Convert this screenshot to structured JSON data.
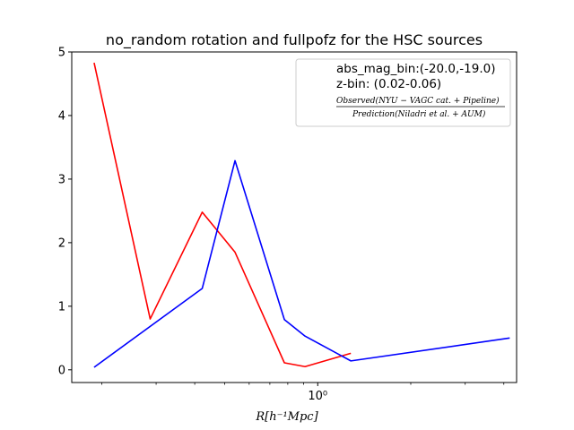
{
  "chart_data": {
    "type": "line",
    "title": "no_random rotation and fullpofz for the HSC sources",
    "xlabel": "R[h⁻¹Mpc]",
    "ylabel": "",
    "xscale": "log",
    "xlim": [
      0.16,
      4.4
    ],
    "ylim": [
      -0.2,
      5.0
    ],
    "x_ticks": [
      {
        "value": 1,
        "label": "10⁰"
      }
    ],
    "y_ticks": [
      {
        "value": 0,
        "label": "0"
      },
      {
        "value": 1,
        "label": "1"
      },
      {
        "value": 2,
        "label": "2"
      },
      {
        "value": 3,
        "label": "3"
      },
      {
        "value": 4,
        "label": "4"
      },
      {
        "value": 5,
        "label": "5"
      }
    ],
    "grid": false,
    "legend": {
      "placement": "upper-right",
      "lines": [
        "abs_mag_bin:(-20.0,-19.0)",
        "z-bin: (0.02-0.06)"
      ],
      "ratio_numerator": "Observed(NYU − VAGC cat. + Pipeline)",
      "ratio_denominator": "Prediction(Niladri et al. + AUM)"
    },
    "series": [
      {
        "color": "#ff0000",
        "x": [
          0.189,
          0.287,
          0.423,
          0.54,
          0.78,
          0.91,
          1.28
        ],
        "y": [
          4.83,
          0.8,
          2.48,
          1.85,
          0.11,
          0.05,
          0.26
        ]
      },
      {
        "color": "#0000ff",
        "x": [
          0.189,
          0.423,
          0.54,
          0.78,
          0.91,
          1.28,
          4.18
        ],
        "y": [
          0.04,
          1.28,
          3.29,
          0.79,
          0.53,
          0.14,
          0.5
        ]
      }
    ]
  }
}
